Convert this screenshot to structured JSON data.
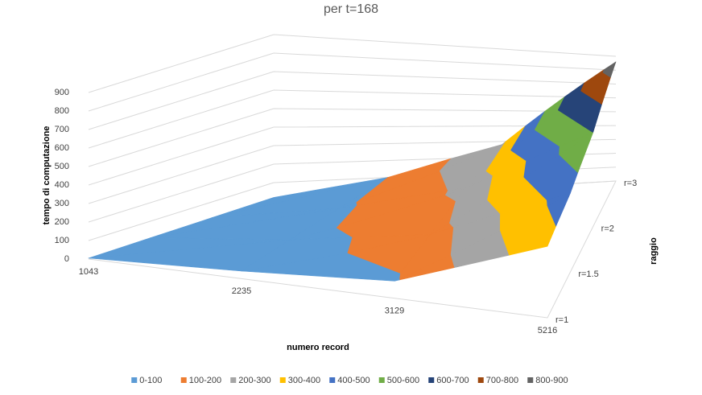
{
  "chart_data": {
    "type": "surface",
    "title": "per t=168",
    "z_label": "tempo di computazione",
    "x_label": "numero record",
    "depth_label": "raggio",
    "categories": [
      "1043",
      "2235",
      "3129",
      "5216"
    ],
    "series": [
      {
        "name": "r=1",
        "values": [
          5,
          40,
          90,
          370
        ]
      },
      {
        "name": "r=1.5",
        "values": [
          10,
          60,
          150,
          450
        ]
      },
      {
        "name": "r=2",
        "values": [
          15,
          80,
          220,
          600
        ]
      },
      {
        "name": "r=3",
        "values": [
          20,
          100,
          280,
          860
        ]
      }
    ],
    "zlim": [
      0,
      900
    ],
    "zticks": [
      0,
      100,
      200,
      300,
      400,
      500,
      600,
      700,
      800,
      900
    ],
    "bands": [
      {
        "name": "0-100",
        "color": "#5b9bd5"
      },
      {
        "name": "100-200",
        "color": "#ed7d31"
      },
      {
        "name": "200-300",
        "color": "#a5a5a5"
      },
      {
        "name": "300-400",
        "color": "#ffc000"
      },
      {
        "name": "400-500",
        "color": "#4472c4"
      },
      {
        "name": "500-600",
        "color": "#70ad47"
      },
      {
        "name": "600-700",
        "color": "#264478"
      },
      {
        "name": "700-800",
        "color": "#9e480e"
      },
      {
        "name": "800-900",
        "color": "#636363"
      }
    ],
    "grid": true
  }
}
